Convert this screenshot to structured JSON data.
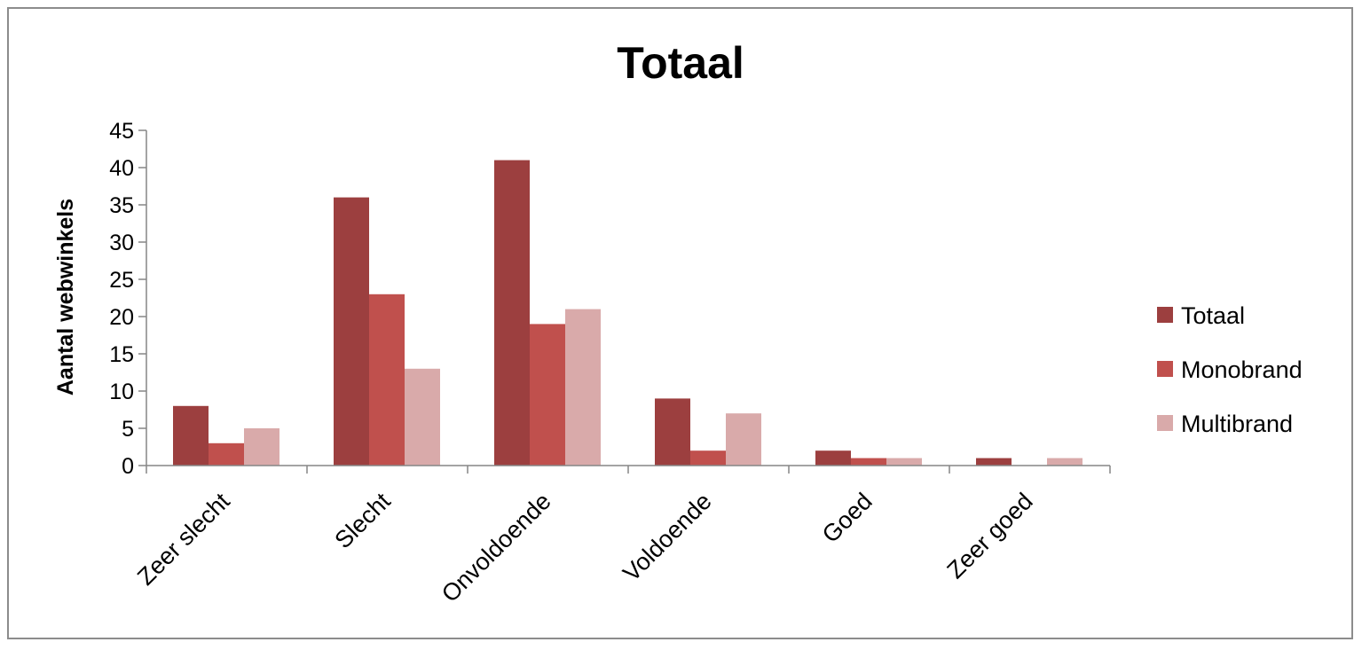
{
  "chart_data": {
    "type": "bar",
    "title": "Totaal",
    "xlabel": "",
    "ylabel": "Aantal webwinkels",
    "categories": [
      "Zeer slecht",
      "Slecht",
      "Onvoldoende",
      "Voldoende",
      "Goed",
      "Zeer goed"
    ],
    "series": [
      {
        "name": "Totaal",
        "values": [
          8,
          36,
          41,
          9,
          2,
          1
        ],
        "color": "#9c3f3f"
      },
      {
        "name": "Monobrand",
        "values": [
          3,
          23,
          19,
          2,
          1,
          0
        ],
        "color": "#c0504d"
      },
      {
        "name": "Multibrand",
        "values": [
          5,
          13,
          21,
          7,
          1,
          1
        ],
        "color": "#d9aaaa"
      }
    ],
    "ylim": [
      0,
      45
    ],
    "yticks": [
      0,
      5,
      10,
      15,
      20,
      25,
      30,
      35,
      40,
      45
    ],
    "grid": false,
    "legend": "right"
  }
}
